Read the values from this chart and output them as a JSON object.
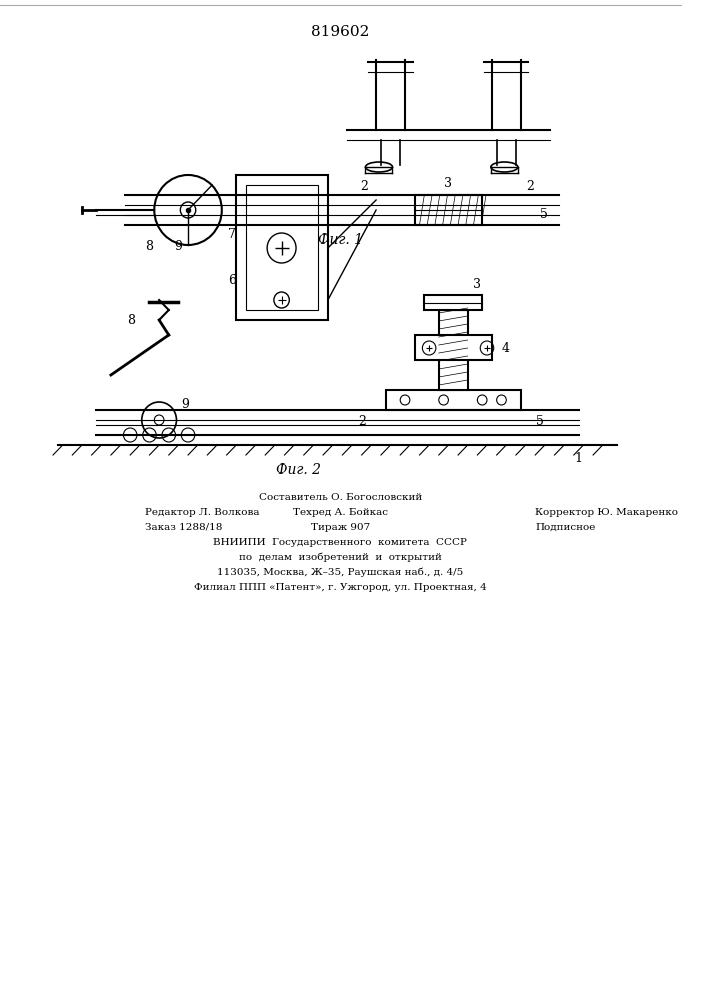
{
  "patent_number": "819602",
  "fig1_label": "Фиг. 1",
  "fig2_label": "Фиг. 2",
  "footer_line1_left": "Редактор Л. Волкова",
  "footer_line1_center": "Техред А. Бойкас",
  "footer_line1_right": "Корректор Ю. Макаренко",
  "footer_line0_center": "Составитель О. Богословский",
  "footer_line2_left": "Заказ 1288/18",
  "footer_line2_center": "Тираж 907",
  "footer_line2_right": "Подписное",
  "footer_line3": "ВНИИПИ  Государственного  комитета  СССР",
  "footer_line4": "по  делам  изобретений  и  открытий",
  "footer_line5": "113035, Москва, Ж–35, Раушская наб., д. 4/5",
  "footer_line6": "Филиал ППП «Патент», г. Ужгород, ул. Проектная, 4",
  "bg_color": "#ffffff",
  "line_color": "#000000",
  "top_border_color": "#888888"
}
